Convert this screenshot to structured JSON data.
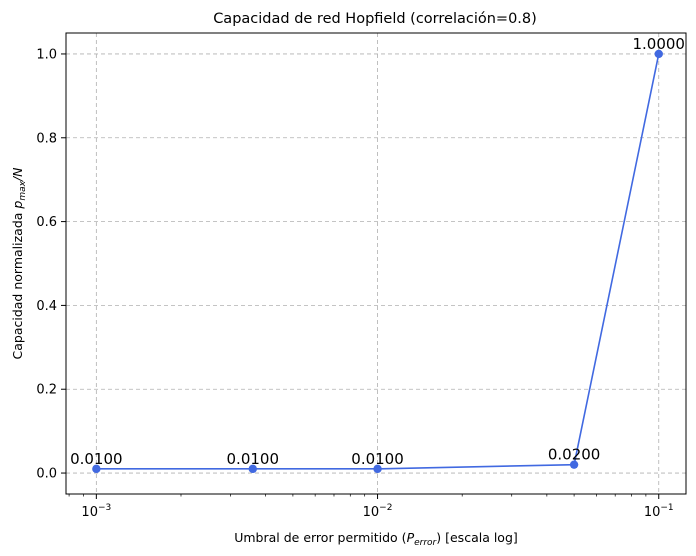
{
  "chart_data": {
    "type": "line",
    "title": "Capacidad de red Hopfield (correlación=0.8)",
    "xlabel": "Umbral de error permitido (P_error) [escala log]",
    "xlabel_parts": {
      "before": "Umbral de error permitido (",
      "sym": "P",
      "sub": "error",
      "after": ") [escala log]"
    },
    "ylabel": "Capacidad normalizada p_max/N",
    "ylabel_parts": {
      "sym": "p",
      "sub": "max",
      "after": "/N",
      "before": "Capacidad normalizada "
    },
    "x_scale": "log",
    "xlim": [
      0.00078,
      0.125
    ],
    "ylim": [
      -0.05,
      1.05
    ],
    "x_ticks": [
      0.001,
      0.01,
      0.1
    ],
    "x_tick_labels": [
      {
        "base": "10",
        "exp": "−3"
      },
      {
        "base": "10",
        "exp": "−2"
      },
      {
        "base": "10",
        "exp": "−1"
      }
    ],
    "y_ticks": [
      0.0,
      0.2,
      0.4,
      0.6,
      0.8,
      1.0
    ],
    "y_tick_labels": [
      "0.0",
      "0.2",
      "0.4",
      "0.6",
      "0.8",
      "1.0"
    ],
    "grid": true,
    "series": [
      {
        "color": "#4169e1",
        "x": [
          0.001,
          0.0036,
          0.01,
          0.05,
          0.1
        ],
        "y": [
          0.01,
          0.01,
          0.01,
          0.02,
          1.0
        ],
        "labels": [
          "0.0100",
          "0.0100",
          "0.0100",
          "0.0200",
          "1.0000"
        ]
      }
    ]
  }
}
